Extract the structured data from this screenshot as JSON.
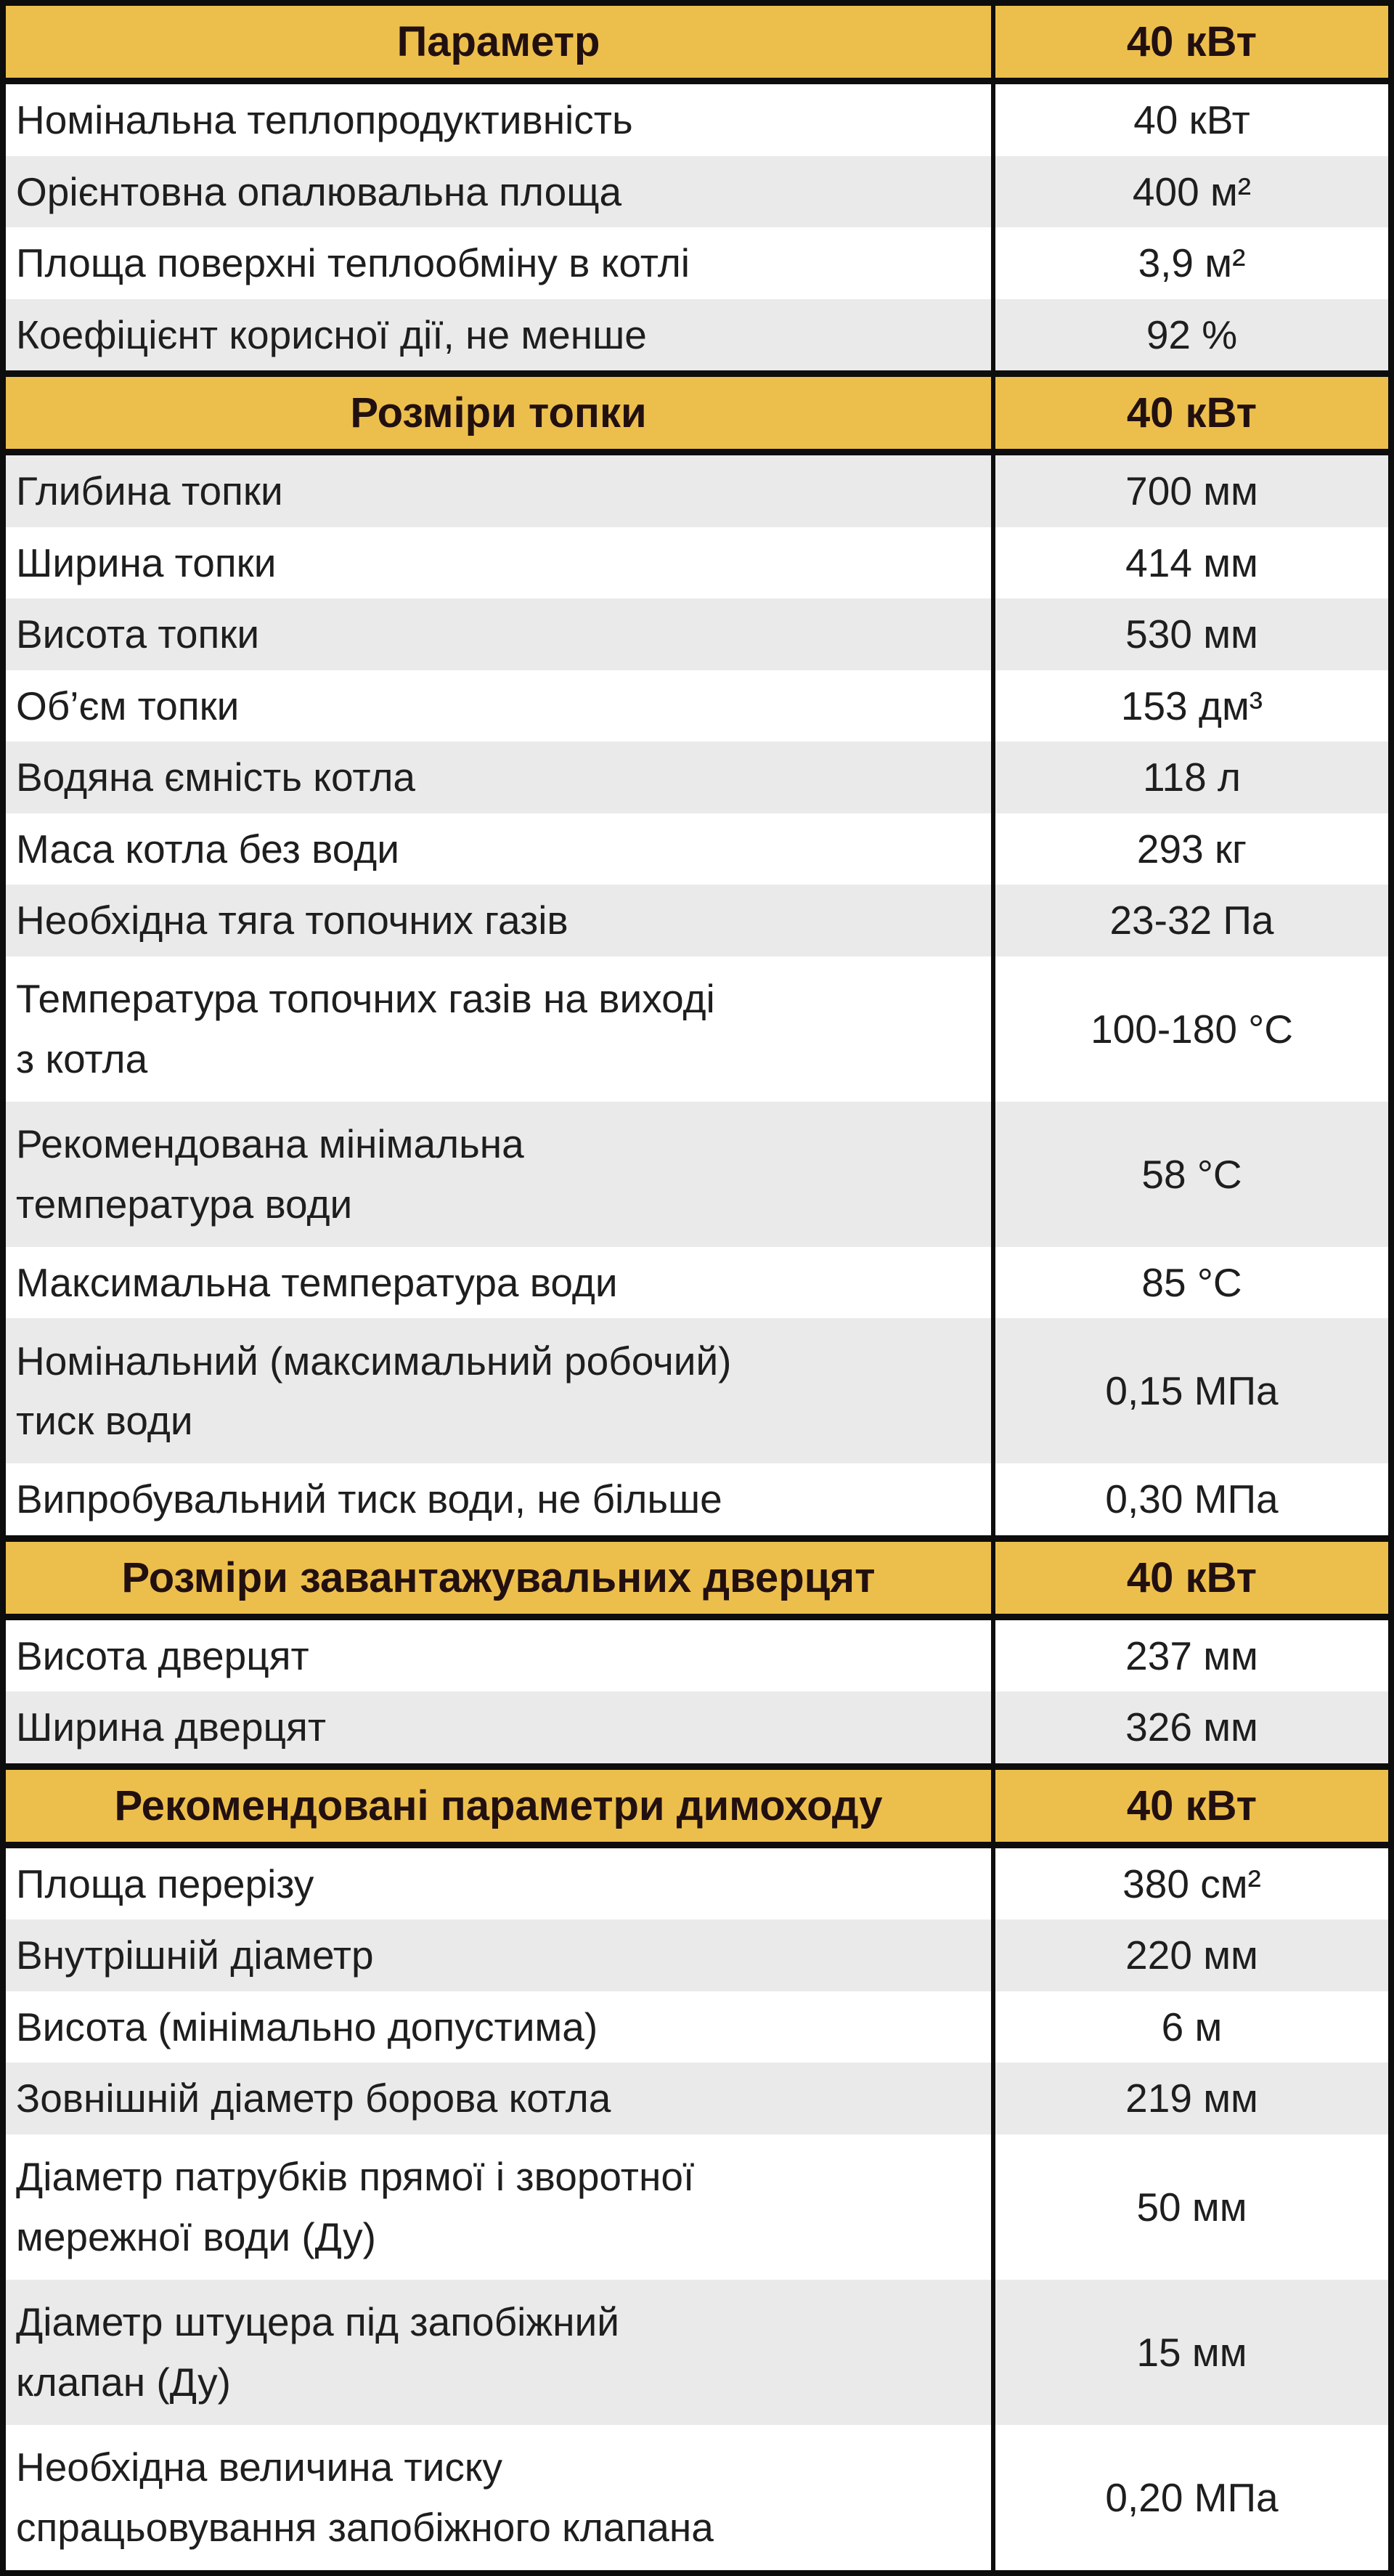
{
  "theme": {
    "header_bg": "#ecbf4d",
    "row_alt_bg": "#ebeaea",
    "row_bg": "#ffffff",
    "border_color": "#0d0d0d",
    "header_text_color": "#221010",
    "body_text_color": "#1e1e1e"
  },
  "table": {
    "sections": [
      {
        "title": "Параметр",
        "value": "40 кВт",
        "rows": [
          {
            "label": "Номінальна теплопродуктивність",
            "value": "40 кВт",
            "shaded": false,
            "tall": false
          },
          {
            "label": "Орієнтовна опалювальна площа",
            "value": "400 м²",
            "shaded": true,
            "tall": false
          },
          {
            "label": "Площа поверхні теплообміну в котлі",
            "value": "3,9 м²",
            "shaded": false,
            "tall": false
          },
          {
            "label": "Коефіцієнт корисної дії, не менше",
            "value": "92 %",
            "shaded": true,
            "tall": false
          }
        ]
      },
      {
        "title": "Розміри топки",
        "value": "40 кВт",
        "rows": [
          {
            "label": "Глибина топки",
            "value": "700 мм",
            "shaded": true,
            "tall": false
          },
          {
            "label": "Ширина топки",
            "value": "414 мм",
            "shaded": false,
            "tall": false
          },
          {
            "label": "Висота топки",
            "value": "530 мм",
            "shaded": true,
            "tall": false
          },
          {
            "label": "Об’єм топки",
            "value": "153 дм³",
            "shaded": false,
            "tall": false
          },
          {
            "label": "Водяна ємність котла",
            "value": "118 л",
            "shaded": true,
            "tall": false
          },
          {
            "label": "Маса котла без води",
            "value": "293 кг",
            "shaded": false,
            "tall": false
          },
          {
            "label": "Необхідна тяга топочних газів",
            "value": "23-32 Па",
            "shaded": true,
            "tall": false
          },
          {
            "label": "Температура топочних газів на виході\nз котла",
            "value": "100-180 °C",
            "shaded": false,
            "tall": true
          },
          {
            "label": "Рекомендована мінімальна\nтемпература води",
            "value": "58 °C",
            "shaded": true,
            "tall": true
          },
          {
            "label": "Максимальна температура води",
            "value": "85 °C",
            "shaded": false,
            "tall": false
          },
          {
            "label": "Номінальний (максимальний робочий)\nтиск води",
            "value": "0,15 МПа",
            "shaded": true,
            "tall": true
          },
          {
            "label": "Випробувальний тиск води, не більше",
            "value": "0,30 МПа",
            "shaded": false,
            "tall": false
          }
        ]
      },
      {
        "title": "Розміри завантажувальних дверцят",
        "value": "40 кВт",
        "rows": [
          {
            "label": "Висота дверцят",
            "value": "237 мм",
            "shaded": false,
            "tall": false
          },
          {
            "label": "Ширина дверцят",
            "value": "326 мм",
            "shaded": true,
            "tall": false
          }
        ]
      },
      {
        "title": "Рекомендовані параметри димоходу",
        "value": "40 кВт",
        "rows": [
          {
            "label": "Площа перерізу",
            "value": "380 см²",
            "shaded": false,
            "tall": false
          },
          {
            "label": "Внутрішній діаметр",
            "value": "220 мм",
            "shaded": true,
            "tall": false
          },
          {
            "label": "Висота (мінімально допустима)",
            "value": "6 м",
            "shaded": false,
            "tall": false
          },
          {
            "label": "Зовнішній діаметр борова котла",
            "value": "219 мм",
            "shaded": true,
            "tall": false
          },
          {
            "label": "Діаметр патрубків прямої і зворотної\nмережної води (Ду)",
            "value": "50 мм",
            "shaded": false,
            "tall": true
          },
          {
            "label": "Діаметр штуцера під запобіжний\nклапан (Ду)",
            "value": "15 мм",
            "shaded": true,
            "tall": true
          },
          {
            "label": "Необхідна величина тиску\nспрацьовування запобіжного клапана",
            "value": "0,20 МПа",
            "shaded": false,
            "tall": true
          }
        ]
      }
    ]
  }
}
